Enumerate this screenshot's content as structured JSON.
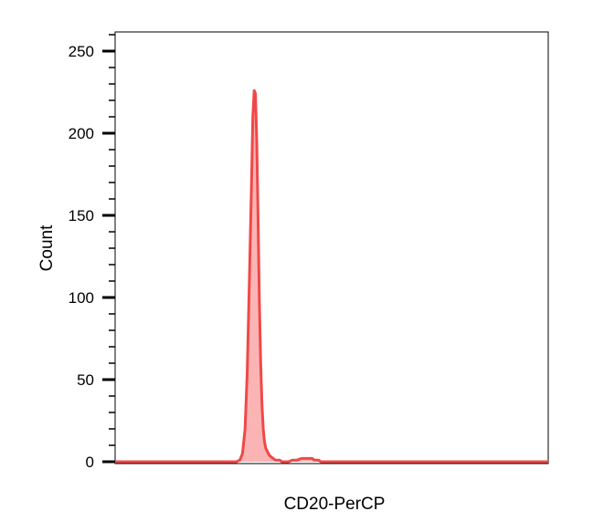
{
  "chart_data": {
    "type": "area",
    "title": "",
    "xlabel": "CD20-PerCP",
    "ylabel": "Count",
    "ylim": [
      0,
      260
    ],
    "xlim": [
      0,
      1000
    ],
    "grid": false,
    "yticks": [
      0,
      50,
      100,
      150,
      200,
      250
    ],
    "ytick_labels": [
      "0",
      "50",
      "100",
      "150",
      "200",
      "250"
    ],
    "series": [
      {
        "color": "#f04848",
        "fill": "#fbb4b4",
        "x": [
          0,
          280,
          288,
          294,
          300,
          305,
          310,
          315,
          318,
          321,
          324,
          327,
          330,
          333,
          336,
          339,
          342,
          345,
          348,
          352,
          356,
          360,
          365,
          370,
          375,
          380,
          385,
          390,
          395,
          400,
          410,
          420,
          430,
          440,
          445,
          450,
          455,
          460,
          465,
          470,
          475,
          480,
          490,
          500,
          520,
          550,
          600,
          700,
          800,
          900,
          1000
        ],
        "values": [
          0,
          0,
          1,
          5,
          20,
          55,
          110,
          170,
          210,
          226,
          224,
          195,
          150,
          100,
          60,
          35,
          20,
          12,
          8,
          6,
          4,
          3,
          2,
          1,
          1,
          1,
          0,
          0,
          0,
          0,
          1,
          1,
          2,
          2,
          2,
          2,
          2,
          1,
          1,
          1,
          0,
          0,
          0,
          0,
          0,
          0,
          0,
          0,
          0,
          0,
          0
        ]
      }
    ]
  }
}
